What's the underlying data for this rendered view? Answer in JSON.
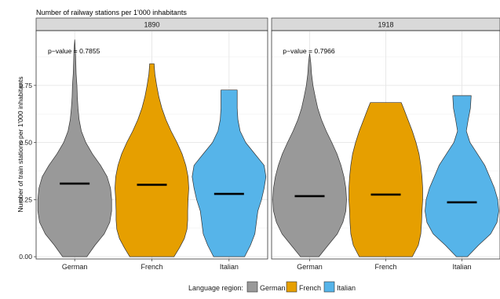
{
  "chart_data": {
    "type": "violin",
    "title": "Number of railway stations per 1'000 inhabitants",
    "xlabel": "",
    "ylabel": "Number of train stations per 1'000 inhabitants",
    "ylim": [
      -0.01,
      0.99
    ],
    "yticks": [
      0,
      0.25,
      0.5,
      0.75
    ],
    "ytick_labels": [
      "0.00",
      "0.25",
      "0.50",
      "0.75"
    ],
    "grid": true,
    "categories": [
      "German",
      "French",
      "Italian"
    ],
    "legend": {
      "title": "Language region:",
      "position": "bottom",
      "entries": [
        {
          "name": "German",
          "color": "#999999"
        },
        {
          "name": "French",
          "color": "#E69F00"
        },
        {
          "name": "Italian",
          "color": "#56B4E9"
        }
      ]
    },
    "panels": [
      {
        "label": "1890",
        "annotation": "p−value = 0.7855",
        "violins": [
          {
            "category": "German",
            "median": 0.32,
            "min": 0.0,
            "max": 0.95,
            "profile": [
              [
                0.0,
                0.33
              ],
              [
                0.05,
                0.55
              ],
              [
                0.1,
                0.8
              ],
              [
                0.15,
                0.95
              ],
              [
                0.2,
                1.0
              ],
              [
                0.25,
                1.0
              ],
              [
                0.3,
                0.97
              ],
              [
                0.35,
                0.88
              ],
              [
                0.4,
                0.7
              ],
              [
                0.45,
                0.48
              ],
              [
                0.5,
                0.3
              ],
              [
                0.55,
                0.18
              ],
              [
                0.6,
                0.12
              ],
              [
                0.65,
                0.09
              ],
              [
                0.7,
                0.07
              ],
              [
                0.75,
                0.06
              ],
              [
                0.8,
                0.04
              ],
              [
                0.85,
                0.03
              ],
              [
                0.9,
                0.02
              ],
              [
                0.95,
                0.0
              ]
            ]
          },
          {
            "category": "French",
            "median": 0.315,
            "min": 0.0,
            "max": 0.845,
            "profile": [
              [
                0.0,
                0.6
              ],
              [
                0.04,
                0.75
              ],
              [
                0.08,
                0.88
              ],
              [
                0.12,
                0.95
              ],
              [
                0.16,
                0.97
              ],
              [
                0.2,
                0.97
              ],
              [
                0.25,
                0.98
              ],
              [
                0.3,
                1.0
              ],
              [
                0.35,
                0.98
              ],
              [
                0.4,
                0.92
              ],
              [
                0.45,
                0.82
              ],
              [
                0.5,
                0.68
              ],
              [
                0.55,
                0.52
              ],
              [
                0.6,
                0.38
              ],
              [
                0.65,
                0.27
              ],
              [
                0.7,
                0.19
              ],
              [
                0.75,
                0.13
              ],
              [
                0.8,
                0.08
              ],
              [
                0.845,
                0.06
              ]
            ]
          },
          {
            "category": "Italian",
            "median": 0.275,
            "min": 0.0,
            "max": 0.73,
            "profile": [
              [
                0.0,
                0.42
              ],
              [
                0.05,
                0.58
              ],
              [
                0.1,
                0.7
              ],
              [
                0.15,
                0.74
              ],
              [
                0.2,
                0.78
              ],
              [
                0.25,
                0.88
              ],
              [
                0.3,
                0.95
              ],
              [
                0.35,
                1.0
              ],
              [
                0.4,
                0.95
              ],
              [
                0.45,
                0.7
              ],
              [
                0.5,
                0.45
              ],
              [
                0.55,
                0.3
              ],
              [
                0.6,
                0.24
              ],
              [
                0.65,
                0.22
              ],
              [
                0.73,
                0.22
              ]
            ]
          }
        ]
      },
      {
        "label": "1918",
        "annotation": "p−value = 0.7966",
        "violins": [
          {
            "category": "German",
            "median": 0.265,
            "min": 0.0,
            "max": 0.89,
            "profile": [
              [
                0.0,
                0.25
              ],
              [
                0.05,
                0.5
              ],
              [
                0.1,
                0.75
              ],
              [
                0.15,
                0.9
              ],
              [
                0.2,
                0.98
              ],
              [
                0.25,
                1.0
              ],
              [
                0.3,
                0.98
              ],
              [
                0.35,
                0.93
              ],
              [
                0.4,
                0.85
              ],
              [
                0.45,
                0.74
              ],
              [
                0.5,
                0.6
              ],
              [
                0.55,
                0.45
              ],
              [
                0.6,
                0.32
              ],
              [
                0.65,
                0.22
              ],
              [
                0.7,
                0.15
              ],
              [
                0.75,
                0.09
              ],
              [
                0.8,
                0.05
              ],
              [
                0.85,
                0.03
              ],
              [
                0.89,
                0.0
              ]
            ]
          },
          {
            "category": "French",
            "median": 0.272,
            "min": 0.0,
            "max": 0.675,
            "profile": [
              [
                0.0,
                0.72
              ],
              [
                0.05,
                0.88
              ],
              [
                0.1,
                0.95
              ],
              [
                0.15,
                0.97
              ],
              [
                0.2,
                0.98
              ],
              [
                0.25,
                1.0
              ],
              [
                0.3,
                1.0
              ],
              [
                0.35,
                0.98
              ],
              [
                0.4,
                0.95
              ],
              [
                0.45,
                0.9
              ],
              [
                0.5,
                0.82
              ],
              [
                0.55,
                0.72
              ],
              [
                0.6,
                0.6
              ],
              [
                0.65,
                0.48
              ],
              [
                0.675,
                0.42
              ]
            ]
          },
          {
            "category": "Italian",
            "median": 0.238,
            "min": 0.0,
            "max": 0.705,
            "profile": [
              [
                0.0,
                0.15
              ],
              [
                0.05,
                0.45
              ],
              [
                0.1,
                0.78
              ],
              [
                0.15,
                0.95
              ],
              [
                0.2,
                1.0
              ],
              [
                0.25,
                0.97
              ],
              [
                0.3,
                0.88
              ],
              [
                0.35,
                0.75
              ],
              [
                0.4,
                0.62
              ],
              [
                0.45,
                0.42
              ],
              [
                0.5,
                0.22
              ],
              [
                0.55,
                0.12
              ],
              [
                0.6,
                0.17
              ],
              [
                0.65,
                0.23
              ],
              [
                0.705,
                0.25
              ]
            ]
          }
        ]
      }
    ]
  }
}
